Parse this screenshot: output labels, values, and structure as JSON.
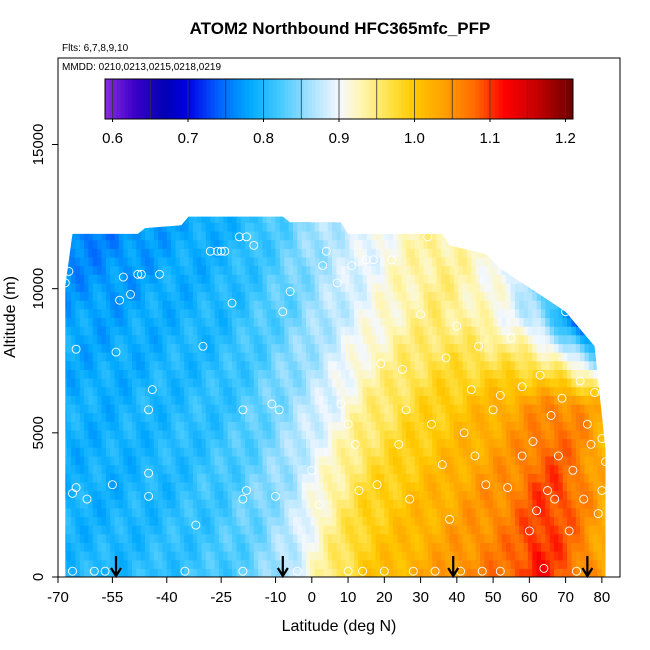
{
  "chart_data": {
    "type": "heatmap",
    "title": "ATOM2 Northbound HFC365mfc_PFP",
    "flights_label": "Flts: 6,7,8,9,10",
    "dates_label": "MMDD: 0210,0213,0215,0218,0219",
    "xlabel": "Latitude (deg N)",
    "ylabel": "Altitude (m)",
    "xlim": [
      -70,
      85
    ],
    "ylim": [
      0,
      18000
    ],
    "x_ticks": [
      -70,
      -55,
      -40,
      -25,
      -10,
      0,
      10,
      20,
      30,
      40,
      50,
      60,
      70,
      80
    ],
    "y_ticks": [
      0,
      5000,
      10000,
      15000
    ],
    "colorbar": {
      "min": 0.59,
      "max": 1.21,
      "ticks": [
        0.6,
        0.7,
        0.8,
        0.9,
        1.0,
        1.1,
        1.2
      ],
      "tick_labels": [
        "0.6",
        "0.7",
        "0.8",
        "0.9",
        "1.0",
        "1.1",
        "1.2"
      ],
      "stops": [
        {
          "v": 0.59,
          "color": "#8a2be2"
        },
        {
          "v": 0.63,
          "color": "#3a00c8"
        },
        {
          "v": 0.67,
          "color": "#0000b4"
        },
        {
          "v": 0.7,
          "color": "#0000e6"
        },
        {
          "v": 0.74,
          "color": "#0060ff"
        },
        {
          "v": 0.78,
          "color": "#00a8ff"
        },
        {
          "v": 0.82,
          "color": "#40c8ff"
        },
        {
          "v": 0.86,
          "color": "#a0e0ff"
        },
        {
          "v": 0.9,
          "color": "#f4f8ff"
        },
        {
          "v": 0.93,
          "color": "#fff6b0"
        },
        {
          "v": 0.97,
          "color": "#ffe040"
        },
        {
          "v": 1.0,
          "color": "#ffc800"
        },
        {
          "v": 1.04,
          "color": "#ffa000"
        },
        {
          "v": 1.08,
          "color": "#ff6a00"
        },
        {
          "v": 1.12,
          "color": "#ff0000"
        },
        {
          "v": 1.16,
          "color": "#c80000"
        },
        {
          "v": 1.21,
          "color": "#6a0000"
        }
      ]
    },
    "flight_profile_latitudes": [
      -54,
      -8,
      39,
      76
    ],
    "field_model": {
      "lat_grid": [
        -68,
        -55,
        -40,
        -25,
        -15,
        -5,
        5,
        15,
        25,
        35,
        45,
        55,
        62,
        68,
        75,
        80
      ],
      "alt_grid": [
        0,
        3000,
        6000,
        9000,
        12000
      ],
      "values": [
        [
          0.8,
          0.8,
          0.81,
          0.82,
          0.84,
          0.88,
          0.95,
          1.0,
          1.02,
          1.04,
          1.06,
          1.08,
          1.12,
          1.09,
          1.06,
          1.03
        ],
        [
          0.79,
          0.79,
          0.8,
          0.82,
          0.84,
          0.87,
          0.93,
          0.98,
          1.0,
          1.02,
          1.04,
          1.06,
          1.09,
          1.1,
          1.06,
          1.03
        ],
        [
          0.79,
          0.79,
          0.8,
          0.81,
          0.83,
          0.86,
          0.89,
          0.94,
          0.97,
          0.99,
          1.01,
          1.03,
          1.05,
          1.06,
          1.05,
          1.02
        ],
        [
          0.78,
          0.78,
          0.79,
          0.8,
          0.82,
          0.84,
          0.87,
          0.9,
          0.93,
          0.95,
          0.93,
          0.9,
          0.86,
          0.8,
          0.7,
          0.68
        ],
        [
          0.75,
          0.76,
          0.78,
          0.79,
          0.81,
          0.84,
          0.87,
          0.89,
          0.92,
          0.94,
          0.92,
          0.88,
          0.84,
          0.78,
          0.7,
          0.68
        ]
      ],
      "ceiling": [
        {
          "lat": -68,
          "alt": 10100
        },
        {
          "lat": -66,
          "alt": 11900
        },
        {
          "lat": -48,
          "alt": 11900
        },
        {
          "lat": -46,
          "alt": 12100
        },
        {
          "lat": -36,
          "alt": 12200
        },
        {
          "lat": -34,
          "alt": 12500
        },
        {
          "lat": -8,
          "alt": 12500
        },
        {
          "lat": -6,
          "alt": 12300
        },
        {
          "lat": 8,
          "alt": 12300
        },
        {
          "lat": 10,
          "alt": 11900
        },
        {
          "lat": 36,
          "alt": 11900
        },
        {
          "lat": 38,
          "alt": 11500
        },
        {
          "lat": 48,
          "alt": 11200
        },
        {
          "lat": 52,
          "alt": 10700
        },
        {
          "lat": 58,
          "alt": 10200
        },
        {
          "lat": 64,
          "alt": 9700
        },
        {
          "lat": 70,
          "alt": 9200
        },
        {
          "lat": 78,
          "alt": 8000
        },
        {
          "lat": 81,
          "alt": 4400
        }
      ]
    },
    "samples": [
      {
        "lat": -68,
        "alt": 10200
      },
      {
        "lat": -67,
        "alt": 10600
      },
      {
        "lat": -65,
        "alt": 7900
      },
      {
        "lat": -66,
        "alt": 2900
      },
      {
        "lat": -65,
        "alt": 3100
      },
      {
        "lat": -62,
        "alt": 2700
      },
      {
        "lat": -66,
        "alt": 200
      },
      {
        "lat": -60,
        "alt": 200
      },
      {
        "lat": -57,
        "alt": 200
      },
      {
        "lat": -55,
        "alt": 3200
      },
      {
        "lat": -54,
        "alt": 7800
      },
      {
        "lat": -53,
        "alt": 9600
      },
      {
        "lat": -52,
        "alt": 10400
      },
      {
        "lat": -50,
        "alt": 9800
      },
      {
        "lat": -48,
        "alt": 10500
      },
      {
        "lat": -47,
        "alt": 10500
      },
      {
        "lat": -45,
        "alt": 2800
      },
      {
        "lat": -45,
        "alt": 3600
      },
      {
        "lat": -45,
        "alt": 5800
      },
      {
        "lat": -44,
        "alt": 6500
      },
      {
        "lat": -42,
        "alt": 10500
      },
      {
        "lat": -35,
        "alt": 200
      },
      {
        "lat": -32,
        "alt": 1800
      },
      {
        "lat": -30,
        "alt": 8000
      },
      {
        "lat": -28,
        "alt": 11300
      },
      {
        "lat": -26,
        "alt": 11300
      },
      {
        "lat": -25,
        "alt": 11300
      },
      {
        "lat": -24,
        "alt": 11300
      },
      {
        "lat": -20,
        "alt": 11800
      },
      {
        "lat": -18,
        "alt": 11800
      },
      {
        "lat": -16,
        "alt": 11500
      },
      {
        "lat": -22,
        "alt": 9500
      },
      {
        "lat": -19,
        "alt": 5800
      },
      {
        "lat": -18,
        "alt": 3000
      },
      {
        "lat": -19,
        "alt": 2700
      },
      {
        "lat": -19,
        "alt": 200
      },
      {
        "lat": -11,
        "alt": 6000
      },
      {
        "lat": -9,
        "alt": 5800
      },
      {
        "lat": -10,
        "alt": 2800
      },
      {
        "lat": -8,
        "alt": 9200
      },
      {
        "lat": -6,
        "alt": 9900
      },
      {
        "lat": -4,
        "alt": 200
      },
      {
        "lat": 0,
        "alt": 3700
      },
      {
        "lat": 2,
        "alt": 2500
      },
      {
        "lat": 3,
        "alt": 10800
      },
      {
        "lat": 4,
        "alt": 11300
      },
      {
        "lat": 7,
        "alt": 10200
      },
      {
        "lat": 8,
        "alt": 6000
      },
      {
        "lat": 10,
        "alt": 5300
      },
      {
        "lat": 10,
        "alt": 200
      },
      {
        "lat": 11,
        "alt": 10800
      },
      {
        "lat": 12,
        "alt": 4600
      },
      {
        "lat": 13,
        "alt": 3000
      },
      {
        "lat": 14,
        "alt": 200
      },
      {
        "lat": 15,
        "alt": 11000
      },
      {
        "lat": 17,
        "alt": 11000
      },
      {
        "lat": 18,
        "alt": 3200
      },
      {
        "lat": 19,
        "alt": 7400
      },
      {
        "lat": 20,
        "alt": 200
      },
      {
        "lat": 22,
        "alt": 11000
      },
      {
        "lat": 24,
        "alt": 4600
      },
      {
        "lat": 25,
        "alt": 7200
      },
      {
        "lat": 26,
        "alt": 5800
      },
      {
        "lat": 27,
        "alt": 2700
      },
      {
        "lat": 28,
        "alt": 200
      },
      {
        "lat": 30,
        "alt": 9100
      },
      {
        "lat": 32,
        "alt": 11800
      },
      {
        "lat": 33,
        "alt": 5300
      },
      {
        "lat": 34,
        "alt": 200
      },
      {
        "lat": 36,
        "alt": 3900
      },
      {
        "lat": 37,
        "alt": 7600
      },
      {
        "lat": 38,
        "alt": 2000
      },
      {
        "lat": 40,
        "alt": 8700
      },
      {
        "lat": 41,
        "alt": 200
      },
      {
        "lat": 42,
        "alt": 5000
      },
      {
        "lat": 44,
        "alt": 6500
      },
      {
        "lat": 45,
        "alt": 4200
      },
      {
        "lat": 46,
        "alt": 8000
      },
      {
        "lat": 47,
        "alt": 200
      },
      {
        "lat": 48,
        "alt": 3200
      },
      {
        "lat": 50,
        "alt": 5800
      },
      {
        "lat": 52,
        "alt": 6300
      },
      {
        "lat": 52,
        "alt": 200
      },
      {
        "lat": 54,
        "alt": 3100
      },
      {
        "lat": 55,
        "alt": 8300
      },
      {
        "lat": 58,
        "alt": 4200
      },
      {
        "lat": 58,
        "alt": 6600
      },
      {
        "lat": 60,
        "alt": 1600
      },
      {
        "lat": 61,
        "alt": 4700
      },
      {
        "lat": 62,
        "alt": 2300
      },
      {
        "lat": 63,
        "alt": 7000
      },
      {
        "lat": 64,
        "alt": 300
      },
      {
        "lat": 65,
        "alt": 3000
      },
      {
        "lat": 66,
        "alt": 5600
      },
      {
        "lat": 67,
        "alt": 2700
      },
      {
        "lat": 68,
        "alt": 4200
      },
      {
        "lat": 69,
        "alt": 6200
      },
      {
        "lat": 70,
        "alt": 9200
      },
      {
        "lat": 71,
        "alt": 1600
      },
      {
        "lat": 72,
        "alt": 3700
      },
      {
        "lat": 73,
        "alt": 200
      },
      {
        "lat": 74,
        "alt": 6800
      },
      {
        "lat": 75,
        "alt": 2700
      },
      {
        "lat": 76,
        "alt": 5300
      },
      {
        "lat": 77,
        "alt": 4600
      },
      {
        "lat": 78,
        "alt": 6400
      },
      {
        "lat": 79,
        "alt": 2200
      },
      {
        "lat": 80,
        "alt": 3000
      },
      {
        "lat": 80,
        "alt": 4800
      },
      {
        "lat": 80,
        "alt": 6900
      },
      {
        "lat": 81,
        "alt": 4000
      },
      {
        "lat": 80,
        "alt": 8500
      }
    ]
  }
}
